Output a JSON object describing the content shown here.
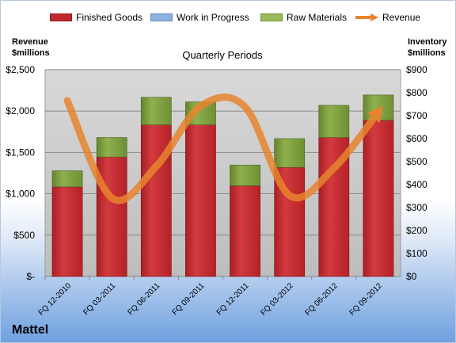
{
  "company": "Mattel",
  "legend": {
    "finished_goods": "Finished Goods",
    "work_in_progress": "Work in Progress",
    "raw_materials": "Raw Materials",
    "revenue": "Revenue"
  },
  "axis_titles": {
    "left_line1": "Revenue",
    "left_line2": "$millions",
    "right_line1": "Inventory",
    "right_line2": "$millions"
  },
  "colors": {
    "finished_goods": "#c0282d",
    "work_in_progress": "#4f81bd",
    "raw_materials": "#76923c",
    "revenue": "#e8842e",
    "plot_bg": "#c8c8c8"
  },
  "chart_data": {
    "type": "bar",
    "subtitle": "Quarterly Periods",
    "categories": [
      "FQ 12-2010",
      "FQ 03-2011",
      "FQ 06-2011",
      "FQ 09-2011",
      "FQ 12-2011",
      "FQ 03-2012",
      "FQ 06-2012",
      "FQ 09-2012"
    ],
    "stacked": true,
    "series": [
      {
        "name": "Finished Goods",
        "axis": "right",
        "values": [
          390,
          520,
          660,
          660,
          395,
          475,
          605,
          680
        ]
      },
      {
        "name": "Work in Progress",
        "axis": "right",
        "values": [
          0,
          0,
          0,
          0,
          0,
          0,
          0,
          0
        ]
      },
      {
        "name": "Raw Materials",
        "axis": "right",
        "values": [
          70,
          85,
          120,
          100,
          90,
          125,
          140,
          110
        ]
      },
      {
        "name": "Revenue",
        "type": "line",
        "axis": "left",
        "values": [
          2125,
          950,
          1330,
          2060,
          2050,
          980,
          1310,
          1990
        ]
      }
    ],
    "left_axis": {
      "ylim": [
        0,
        2500
      ],
      "ticks": [
        "$-",
        "$500",
        "$1,000",
        "$1,500",
        "$2,000",
        "$2,500"
      ],
      "tick_values": [
        0,
        500,
        1000,
        1500,
        2000,
        2500
      ]
    },
    "right_axis": {
      "ylim": [
        0,
        900
      ],
      "ticks": [
        "$0",
        "$100",
        "$200",
        "$300",
        "$400",
        "$500",
        "$600",
        "$700",
        "$800",
        "$900"
      ],
      "tick_values": [
        0,
        100,
        200,
        300,
        400,
        500,
        600,
        700,
        800,
        900
      ]
    },
    "grid": true,
    "legend_position": "top"
  }
}
